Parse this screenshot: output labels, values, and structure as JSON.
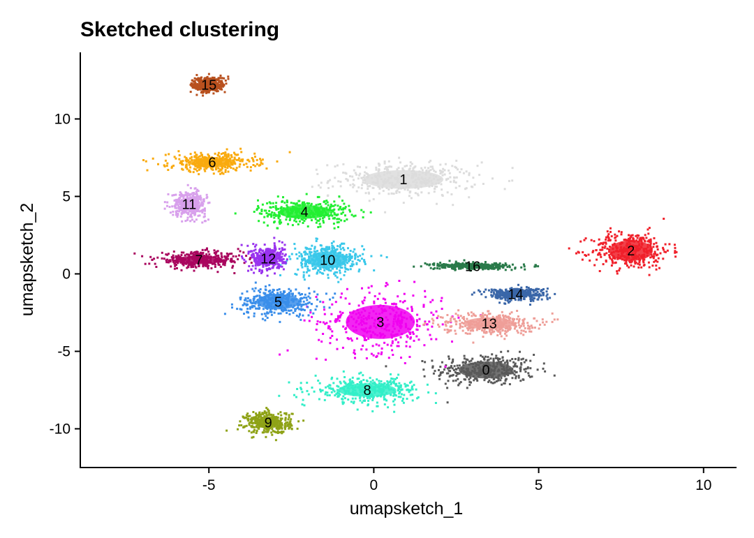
{
  "chart_data": {
    "type": "scatter",
    "title": "Sketched clustering",
    "xlabel": "umapsketch_1",
    "ylabel": "umapsketch_2",
    "xlim": [
      -8.9,
      11.0
    ],
    "ylim": [
      -12.5,
      14.3
    ],
    "xticks": [
      -5,
      0,
      5,
      10
    ],
    "xtick_labels": [
      "-5",
      "0",
      "5",
      "10"
    ],
    "yticks": [
      -10,
      -5,
      0,
      5,
      10
    ],
    "ytick_labels": [
      "-10",
      "-5",
      "0",
      "5",
      "10"
    ],
    "grid": false,
    "legend": "none",
    "clusters": [
      {
        "label": "0",
        "color": "#595959",
        "center": [
          3.4,
          -6.2
        ],
        "spread": [
          1.5,
          1.0
        ]
      },
      {
        "label": "1",
        "color": "#DCDCDC",
        "center": [
          0.9,
          6.1
        ],
        "spread": [
          2.2,
          1.1
        ]
      },
      {
        "label": "2",
        "color": "#F0202A",
        "center": [
          7.8,
          1.5
        ],
        "spread": [
          1.2,
          1.2
        ]
      },
      {
        "label": "3",
        "color": "#F000F0",
        "center": [
          0.2,
          -3.1
        ],
        "spread": [
          1.9,
          2.0
        ]
      },
      {
        "label": "4",
        "color": "#22EE33",
        "center": [
          -2.1,
          4.0
        ],
        "spread": [
          1.4,
          0.8
        ]
      },
      {
        "label": "5",
        "color": "#3A8EEA",
        "center": [
          -2.9,
          -1.8
        ],
        "spread": [
          1.2,
          0.9
        ]
      },
      {
        "label": "6",
        "color": "#F9AA0E",
        "center": [
          -4.9,
          7.2
        ],
        "spread": [
          1.3,
          0.6
        ]
      },
      {
        "label": "7",
        "color": "#A9065E",
        "center": [
          -5.3,
          0.9
        ],
        "spread": [
          1.3,
          0.5
        ]
      },
      {
        "label": "8",
        "color": "#33EEC8",
        "center": [
          -0.2,
          -7.5
        ],
        "spread": [
          1.6,
          0.8
        ]
      },
      {
        "label": "9",
        "color": "#8EA216",
        "center": [
          -3.2,
          -9.6
        ],
        "spread": [
          0.7,
          0.7
        ]
      },
      {
        "label": "10",
        "color": "#3AC8EA",
        "center": [
          -1.4,
          0.9
        ],
        "spread": [
          1.1,
          1.0
        ]
      },
      {
        "label": "11",
        "color": "#D8A0EC",
        "center": [
          -5.6,
          4.5
        ],
        "spread": [
          0.5,
          0.8
        ]
      },
      {
        "label": "12",
        "color": "#9933EE",
        "center": [
          -3.2,
          1.0
        ],
        "spread": [
          0.5,
          0.8
        ]
      },
      {
        "label": "13",
        "color": "#EE9E98",
        "center": [
          3.5,
          -3.2
        ],
        "spread": [
          1.4,
          0.7
        ]
      },
      {
        "label": "14",
        "color": "#3A66A8",
        "center": [
          4.3,
          -1.3
        ],
        "spread": [
          0.9,
          0.4
        ]
      },
      {
        "label": "15",
        "color": "#B8501E",
        "center": [
          -5.0,
          12.2
        ],
        "spread": [
          0.5,
          0.5
        ]
      },
      {
        "label": "16",
        "color": "#2A7A4A",
        "center": [
          3.0,
          0.5
        ],
        "spread": [
          1.2,
          0.2
        ]
      }
    ]
  }
}
